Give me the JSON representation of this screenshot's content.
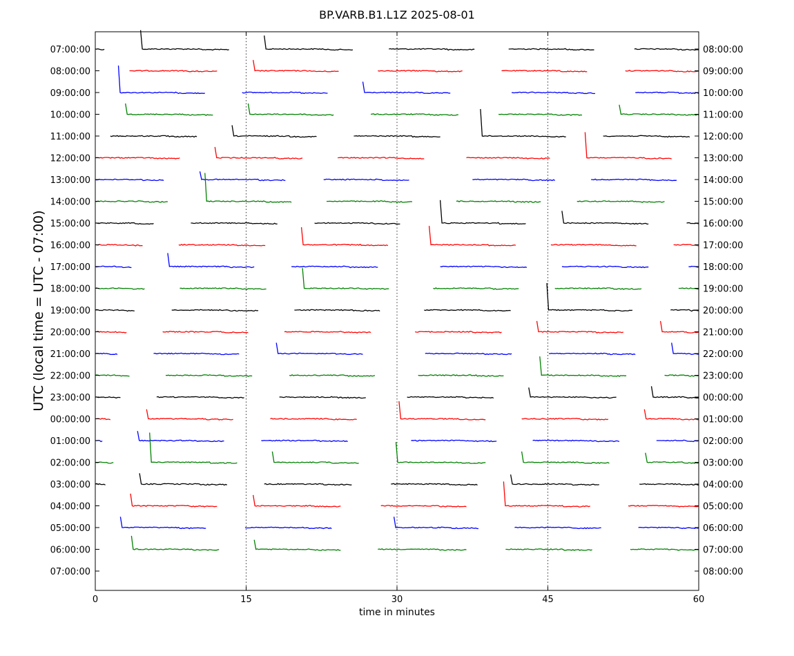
{
  "chart_data": {
    "type": "line",
    "title": "BP.VARB.B1.L1Z 2025-08-01",
    "xlabel": "time in minutes",
    "ylabel": "UTC (local time = UTC - 07:00)",
    "xlim": [
      0,
      60
    ],
    "x_ticks": [
      "0",
      "15",
      "30",
      "45",
      "60"
    ],
    "x_tick_values": [
      0,
      15,
      30,
      45,
      60
    ],
    "grid": "vertical dotted lines at 15, 30, 45",
    "color_cycle": [
      "#000000",
      "#ff0000",
      "#0000ff",
      "#008000"
    ],
    "y_left_labels": [
      "07:00:00",
      "08:00:00",
      "09:00:00",
      "10:00:00",
      "11:00:00",
      "12:00:00",
      "13:00:00",
      "14:00:00",
      "15:00:00",
      "16:00:00",
      "17:00:00",
      "18:00:00",
      "19:00:00",
      "20:00:00",
      "21:00:00",
      "22:00:00",
      "23:00:00",
      "00:00:00",
      "01:00:00",
      "02:00:00",
      "03:00:00",
      "04:00:00",
      "05:00:00",
      "06:00:00",
      "07:00:00"
    ],
    "y_right_labels": [
      "08:00:00",
      "09:00:00",
      "10:00:00",
      "11:00:00",
      "12:00:00",
      "13:00:00",
      "14:00:00",
      "15:00:00",
      "16:00:00",
      "17:00:00",
      "18:00:00",
      "19:00:00",
      "20:00:00",
      "21:00:00",
      "22:00:00",
      "23:00:00",
      "00:00:00",
      "01:00:00",
      "02:00:00",
      "03:00:00",
      "04:00:00",
      "05:00:00",
      "06:00:00",
      "07:00:00",
      "08:00:00"
    ],
    "series": [
      {
        "hour": "07:00:00",
        "color": "#000000",
        "segments": [
          [
            0,
            0.9
          ],
          [
            4.5,
            13.3
          ],
          [
            16.8,
            25.6
          ],
          [
            29.2,
            37.7
          ],
          [
            41.1,
            49.6
          ],
          [
            53.6,
            60
          ]
        ],
        "spikes": [
          [
            4.5,
            1.4
          ],
          [
            16.8,
            1.0
          ]
        ]
      },
      {
        "hour": "08:00:00",
        "color": "#ff0000",
        "segments": [
          [
            3.4,
            12.1
          ],
          [
            15.7,
            24.2
          ],
          [
            28.1,
            36.5
          ],
          [
            40.4,
            48.9
          ],
          [
            52.7,
            60
          ]
        ],
        "spikes": [
          [
            15.7,
            0.8
          ]
        ]
      },
      {
        "hour": "09:00:00",
        "color": "#0000ff",
        "segments": [
          [
            2.3,
            10.9
          ],
          [
            14.6,
            23.1
          ],
          [
            26.6,
            35.3
          ],
          [
            41.4,
            49.7
          ],
          [
            53.7,
            60
          ]
        ],
        "spikes": [
          [
            2.3,
            2.0
          ],
          [
            26.6,
            0.8
          ]
        ]
      },
      {
        "hour": "10:00:00",
        "color": "#008000",
        "segments": [
          [
            3.0,
            11.7
          ],
          [
            15.2,
            23.7
          ],
          [
            27.4,
            36.1
          ],
          [
            40.1,
            48.4
          ],
          [
            52.1,
            60
          ]
        ],
        "spikes": [
          [
            3.0,
            0.8
          ],
          [
            15.2,
            0.8
          ],
          [
            52.1,
            0.7
          ]
        ]
      },
      {
        "hour": "11:00:00",
        "color": "#000000",
        "segments": [
          [
            1.5,
            10.1
          ],
          [
            13.6,
            22.0
          ],
          [
            25.7,
            34.3
          ],
          [
            38.3,
            46.8
          ],
          [
            50.5,
            59.1
          ]
        ],
        "spikes": [
          [
            13.6,
            0.8
          ],
          [
            38.3,
            2.0
          ]
        ]
      },
      {
        "hour": "12:00:00",
        "color": "#ff0000",
        "segments": [
          [
            0,
            8.4
          ],
          [
            11.9,
            20.6
          ],
          [
            24.1,
            32.7
          ],
          [
            36.9,
            45.2
          ],
          [
            48.7,
            57.3
          ]
        ],
        "spikes": [
          [
            11.9,
            0.8
          ],
          [
            48.7,
            1.9
          ]
        ]
      },
      {
        "hour": "13:00:00",
        "color": "#0000ff",
        "segments": [
          [
            0,
            6.8
          ],
          [
            10.4,
            18.9
          ],
          [
            22.7,
            31.2
          ],
          [
            37.5,
            45.7
          ],
          [
            49.3,
            57.8
          ]
        ],
        "spikes": [
          [
            10.4,
            0.6
          ]
        ]
      },
      {
        "hour": "14:00:00",
        "color": "#008000",
        "segments": [
          [
            0,
            7.2
          ],
          [
            10.9,
            19.5
          ],
          [
            23.0,
            31.5
          ],
          [
            35.9,
            44.3
          ],
          [
            47.9,
            56.6
          ]
        ],
        "spikes": [
          [
            10.9,
            2.1
          ]
        ]
      },
      {
        "hour": "15:00:00",
        "color": "#000000",
        "segments": [
          [
            0,
            5.8
          ],
          [
            9.5,
            18.1
          ],
          [
            21.8,
            30.3
          ],
          [
            34.3,
            42.8
          ],
          [
            46.4,
            55.0
          ],
          [
            58.8,
            60
          ]
        ],
        "spikes": [
          [
            34.3,
            1.7
          ],
          [
            46.4,
            0.9
          ]
        ]
      },
      {
        "hour": "16:00:00",
        "color": "#ff0000",
        "segments": [
          [
            0,
            4.7
          ],
          [
            8.3,
            16.9
          ],
          [
            20.5,
            29.1
          ],
          [
            33.2,
            41.8
          ],
          [
            45.3,
            53.8
          ],
          [
            57.5,
            60
          ]
        ],
        "spikes": [
          [
            20.5,
            1.3
          ],
          [
            33.2,
            1.4
          ]
        ]
      },
      {
        "hour": "17:00:00",
        "color": "#0000ff",
        "segments": [
          [
            0,
            3.6
          ],
          [
            7.2,
            15.8
          ],
          [
            19.5,
            28.1
          ],
          [
            34.3,
            42.9
          ],
          [
            46.4,
            55.0
          ],
          [
            59.0,
            60
          ]
        ],
        "spikes": [
          [
            7.2,
            1.0
          ]
        ]
      },
      {
        "hour": "18:00:00",
        "color": "#008000",
        "segments": [
          [
            0,
            4.9
          ],
          [
            8.4,
            17.0
          ],
          [
            20.6,
            29.2
          ],
          [
            33.6,
            42.1
          ],
          [
            45.7,
            54.3
          ],
          [
            58.0,
            60
          ]
        ],
        "spikes": [
          [
            20.6,
            1.5
          ]
        ]
      },
      {
        "hour": "19:00:00",
        "color": "#000000",
        "segments": [
          [
            0,
            3.9
          ],
          [
            7.6,
            16.2
          ],
          [
            19.8,
            28.3
          ],
          [
            32.7,
            41.3
          ],
          [
            44.9,
            53.4
          ],
          [
            57.2,
            60
          ]
        ],
        "spikes": [
          [
            44.9,
            2.0
          ]
        ]
      },
      {
        "hour": "20:00:00",
        "color": "#ff0000",
        "segments": [
          [
            0,
            3.1
          ],
          [
            6.7,
            15.2
          ],
          [
            18.8,
            27.4
          ],
          [
            31.8,
            40.4
          ],
          [
            43.9,
            52.5
          ],
          [
            56.2,
            60
          ]
        ],
        "spikes": [
          [
            43.9,
            0.8
          ],
          [
            56.2,
            0.8
          ]
        ]
      },
      {
        "hour": "21:00:00",
        "color": "#0000ff",
        "segments": [
          [
            0,
            2.2
          ],
          [
            5.8,
            14.3
          ],
          [
            18.0,
            26.6
          ],
          [
            32.8,
            41.4
          ],
          [
            45.1,
            53.7
          ],
          [
            57.3,
            60
          ]
        ],
        "spikes": [
          [
            18.0,
            0.8
          ],
          [
            57.3,
            0.8
          ]
        ]
      },
      {
        "hour": "22:00:00",
        "color": "#008000",
        "segments": [
          [
            0,
            3.4
          ],
          [
            7.0,
            15.6
          ],
          [
            19.3,
            27.8
          ],
          [
            32.1,
            40.6
          ],
          [
            44.2,
            52.8
          ],
          [
            56.6,
            60
          ]
        ],
        "spikes": [
          [
            44.2,
            1.4
          ]
        ]
      },
      {
        "hour": "23:00:00",
        "color": "#000000",
        "segments": [
          [
            0,
            2.5
          ],
          [
            6.1,
            14.8
          ],
          [
            18.3,
            26.9
          ],
          [
            31.0,
            39.6
          ],
          [
            43.1,
            51.8
          ],
          [
            55.3,
            60
          ]
        ],
        "spikes": [
          [
            43.1,
            0.7
          ],
          [
            55.3,
            0.8
          ]
        ]
      },
      {
        "hour": "00:00:00",
        "color": "#ff0000",
        "segments": [
          [
            0,
            1.5
          ],
          [
            5.1,
            13.7
          ],
          [
            17.4,
            26.0
          ],
          [
            30.2,
            38.8
          ],
          [
            42.4,
            51.0
          ],
          [
            54.6,
            60
          ]
        ],
        "spikes": [
          [
            5.1,
            0.7
          ],
          [
            30.2,
            1.3
          ],
          [
            54.6,
            0.7
          ]
        ]
      },
      {
        "hour": "01:00:00",
        "color": "#0000ff",
        "segments": [
          [
            0,
            0.7
          ],
          [
            4.2,
            12.8
          ],
          [
            16.5,
            25.1
          ],
          [
            31.4,
            39.9
          ],
          [
            43.5,
            52.1
          ],
          [
            55.8,
            60
          ]
        ],
        "spikes": [
          [
            4.2,
            0.7
          ]
        ]
      },
      {
        "hour": "02:00:00",
        "color": "#008000",
        "segments": [
          [
            0,
            1.8
          ],
          [
            5.4,
            14.1
          ],
          [
            17.6,
            26.2
          ],
          [
            29.9,
            38.8
          ],
          [
            42.4,
            51.1
          ],
          [
            54.7,
            60
          ]
        ],
        "spikes": [
          [
            5.4,
            2.2
          ],
          [
            17.6,
            0.8
          ],
          [
            29.9,
            1.5
          ],
          [
            42.4,
            0.8
          ],
          [
            54.7,
            0.7
          ]
        ]
      },
      {
        "hour": "03:00:00",
        "color": "#000000",
        "segments": [
          [
            0,
            1.0
          ],
          [
            4.4,
            13.1
          ],
          [
            16.8,
            25.5
          ],
          [
            29.4,
            38.0
          ],
          [
            41.3,
            50.1
          ],
          [
            54.1,
            60
          ]
        ],
        "spikes": [
          [
            4.4,
            0.8
          ],
          [
            41.3,
            0.7
          ]
        ]
      },
      {
        "hour": "04:00:00",
        "color": "#ff0000",
        "segments": [
          [
            3.5,
            12.1
          ],
          [
            15.7,
            24.4
          ],
          [
            28.4,
            36.9
          ],
          [
            40.6,
            49.2
          ],
          [
            53.0,
            60
          ]
        ],
        "spikes": [
          [
            3.5,
            0.9
          ],
          [
            15.7,
            0.8
          ],
          [
            40.6,
            1.8
          ]
        ]
      },
      {
        "hour": "05:00:00",
        "color": "#0000ff",
        "segments": [
          [
            2.5,
            11.0
          ],
          [
            14.9,
            23.5
          ],
          [
            29.7,
            38.1
          ],
          [
            41.7,
            50.3
          ],
          [
            54.0,
            60
          ]
        ],
        "spikes": [
          [
            2.5,
            0.8
          ],
          [
            29.7,
            0.8
          ]
        ]
      },
      {
        "hour": "06:00:00",
        "color": "#008000",
        "segments": [
          [
            3.6,
            12.3
          ],
          [
            15.8,
            24.4
          ],
          [
            28.1,
            36.9
          ],
          [
            40.8,
            49.4
          ],
          [
            53.2,
            60
          ]
        ],
        "spikes": [
          [
            3.6,
            1.0
          ],
          [
            15.8,
            0.7
          ]
        ]
      }
    ]
  }
}
